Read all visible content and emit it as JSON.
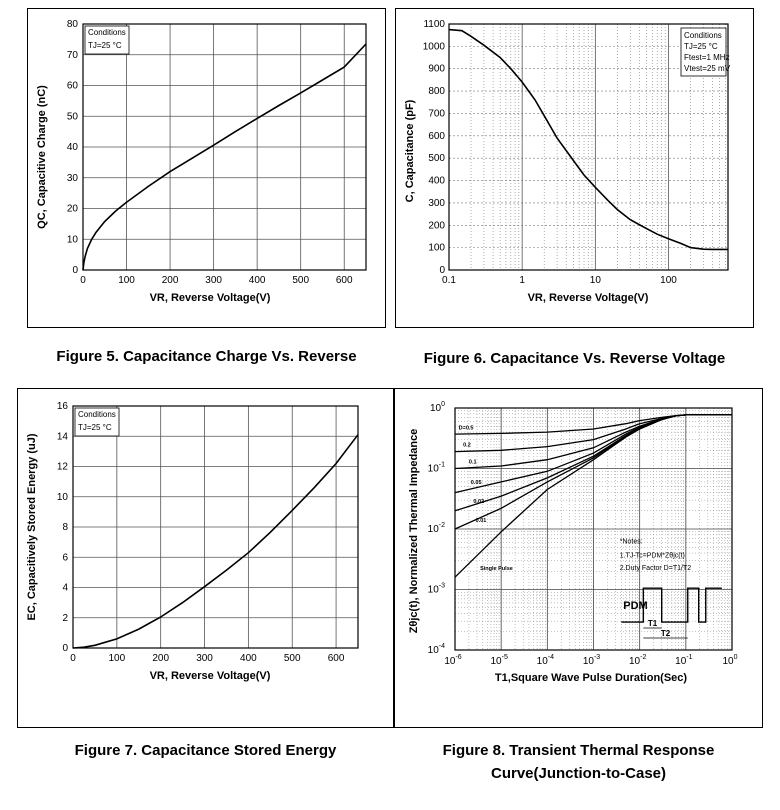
{
  "captions": {
    "fig5": "Figure 5. Capacitance Charge Vs. Reverse",
    "fig6": "Figure 6. Capacitance Vs. Reverse Voltage",
    "fig7": "Figure 7. Capacitance Stored Energy",
    "fig8_line1": "Figure 8. Transient Thermal Response",
    "fig8_line2": "Curve(Junction-to-Case)"
  },
  "chart_data": [
    {
      "id": "fig5",
      "type": "line",
      "xlabel": "VR, Reverse Voltage(V)",
      "ylabel": "QC, Capacitive Charge (nC)",
      "xlim": [
        0,
        650
      ],
      "ylim": [
        0,
        80
      ],
      "xticks": [
        0,
        100,
        200,
        300,
        400,
        500,
        600
      ],
      "yticks": [
        0,
        10,
        20,
        30,
        40,
        50,
        60,
        70,
        80
      ],
      "grid": true,
      "conditions": [
        "Conditions",
        "TJ=25 °C"
      ],
      "series": [
        {
          "x": [
            0,
            2,
            5,
            10,
            20,
            30,
            50,
            75,
            100,
            150,
            200,
            250,
            300,
            350,
            400,
            450,
            500,
            550,
            600,
            650
          ],
          "y": [
            0,
            2.5,
            4.5,
            7,
            10,
            12.3,
            15.8,
            19.2,
            22,
            27.2,
            32,
            36.3,
            40.6,
            45,
            49.3,
            53.5,
            57.6,
            61.8,
            66,
            73.5
          ]
        }
      ]
    },
    {
      "id": "fig6",
      "type": "line",
      "xscale": "log",
      "xlabel": "VR, Reverse Voltage(V)",
      "ylabel": "C, Capacitance (pF)",
      "xlim": [
        0.1,
        650
      ],
      "ylim": [
        0,
        1100
      ],
      "xticks": [
        0.1,
        1,
        10,
        100
      ],
      "yticks": [
        0,
        100,
        200,
        300,
        400,
        500,
        600,
        700,
        800,
        900,
        1000,
        1100
      ],
      "grid": true,
      "conditions": [
        "Conditions",
        "TJ=25 °C",
        "Ftest=1 MHz",
        "Vtest=25 mV"
      ],
      "series": [
        {
          "x": [
            0.1,
            0.15,
            0.2,
            0.3,
            0.5,
            0.7,
            1,
            1.5,
            2,
            3,
            5,
            7,
            10,
            15,
            20,
            30,
            50,
            70,
            100,
            150,
            200,
            300,
            400,
            650
          ],
          "y": [
            1075,
            1070,
            1045,
            1005,
            950,
            900,
            840,
            760,
            690,
            590,
            490,
            425,
            370,
            310,
            270,
            225,
            185,
            160,
            140,
            118,
            100,
            93,
            92,
            92
          ]
        }
      ]
    },
    {
      "id": "fig7",
      "type": "line",
      "xlabel": "VR, Reverse Voltage(V)",
      "ylabel": "EC, Capacitively Stored Energy (uJ)",
      "xlim": [
        0,
        650
      ],
      "ylim": [
        0,
        16
      ],
      "xticks": [
        0,
        100,
        200,
        300,
        400,
        500,
        600
      ],
      "yticks": [
        0,
        2,
        4,
        6,
        8,
        10,
        12,
        14,
        16
      ],
      "grid": true,
      "conditions": [
        "Conditions",
        "TJ=25 °C"
      ],
      "series": [
        {
          "x": [
            0,
            25,
            50,
            100,
            150,
            200,
            250,
            300,
            350,
            400,
            450,
            500,
            550,
            600,
            650
          ],
          "y": [
            0,
            0.05,
            0.18,
            0.6,
            1.25,
            2.05,
            3,
            4.05,
            5.15,
            6.3,
            7.65,
            9.1,
            10.6,
            12.2,
            14.1
          ]
        }
      ]
    },
    {
      "id": "fig8",
      "type": "line",
      "xscale": "log",
      "yscale": "log",
      "xlabel": "T1,Square Wave Pulse Duration(Sec)",
      "ylabel": "Zθjc(t), Normalized Thermal Impedance",
      "xlim": [
        1e-06,
        1
      ],
      "ylim": [
        0.0001,
        1
      ],
      "xticks": [
        "10-6",
        "10-5",
        "10-4",
        "10-3",
        "10-2",
        "10-1",
        "100"
      ],
      "yticks": [
        "10-4",
        "10-3",
        "10-2",
        "10-1",
        "100"
      ],
      "grid": true,
      "notes": [
        "*Notes:",
        "1.TJ-Tc=PDM*Zθjc(t)",
        "2.Duty Factor D=T1/T2"
      ],
      "pulse_labels": [
        "PDM",
        "T1",
        "T2"
      ],
      "series": [
        {
          "name": "D=0.5",
          "x": [
            1e-06,
            1e-05,
            0.0001,
            0.001,
            0.005,
            0.01,
            0.03,
            0.06,
            0.1,
            1
          ],
          "y": [
            0.37,
            0.38,
            0.4,
            0.45,
            0.55,
            0.62,
            0.7,
            0.75,
            0.77,
            0.77
          ]
        },
        {
          "name": "0.2",
          "x": [
            1e-06,
            1e-05,
            0.0001,
            0.001,
            0.005,
            0.01,
            0.03,
            0.06,
            0.1,
            1
          ],
          "y": [
            0.19,
            0.2,
            0.23,
            0.3,
            0.45,
            0.55,
            0.67,
            0.74,
            0.77,
            0.77
          ]
        },
        {
          "name": "0.1",
          "x": [
            1e-06,
            1e-05,
            0.0001,
            0.001,
            0.005,
            0.01,
            0.03,
            0.06,
            0.1,
            1
          ],
          "y": [
            0.1,
            0.11,
            0.14,
            0.22,
            0.4,
            0.5,
            0.66,
            0.74,
            0.77,
            0.77
          ]
        },
        {
          "name": "0.05",
          "x": [
            1e-06,
            1e-05,
            0.0001,
            0.001,
            0.005,
            0.01,
            0.03,
            0.06,
            0.1,
            1
          ],
          "y": [
            0.04,
            0.06,
            0.09,
            0.18,
            0.37,
            0.48,
            0.65,
            0.74,
            0.77,
            0.77
          ]
        },
        {
          "name": "0.02",
          "x": [
            1e-06,
            1e-05,
            0.0001,
            0.001,
            0.005,
            0.01,
            0.03,
            0.06,
            0.1,
            1
          ],
          "y": [
            0.02,
            0.035,
            0.07,
            0.16,
            0.35,
            0.47,
            0.65,
            0.74,
            0.77,
            0.77
          ]
        },
        {
          "name": "0.01",
          "x": [
            1e-06,
            1e-05,
            0.0001,
            0.001,
            0.005,
            0.01,
            0.03,
            0.06,
            0.1,
            1
          ],
          "y": [
            0.01,
            0.022,
            0.06,
            0.15,
            0.34,
            0.46,
            0.65,
            0.74,
            0.77,
            0.77
          ]
        },
        {
          "name": "Single Pulse",
          "x": [
            1e-06,
            1e-05,
            0.0001,
            0.001,
            0.005,
            0.01,
            0.03,
            0.06,
            0.1,
            1
          ],
          "y": [
            0.0016,
            0.009,
            0.045,
            0.14,
            0.33,
            0.45,
            0.64,
            0.74,
            0.77,
            0.77
          ]
        }
      ]
    }
  ]
}
